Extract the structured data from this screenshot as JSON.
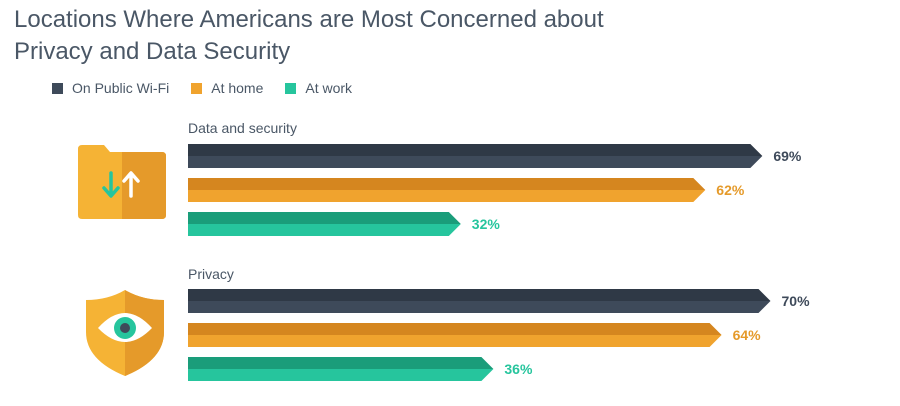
{
  "title": "Locations Where Americans are Most Concerned about Privacy and Data Security",
  "colors": {
    "wifi": "#3e4a5a",
    "home": "#f0a32e",
    "work": "#26c59d",
    "text": "#4a5766"
  },
  "legend": [
    {
      "label": "On Public Wi-Fi",
      "color": "#3e4a5a"
    },
    {
      "label": "At home",
      "color": "#f0a32e"
    },
    {
      "label": "At work",
      "color": "#26c59d"
    }
  ],
  "groups": [
    {
      "label": "Data and security",
      "icon": "folder-transfer-icon"
    },
    {
      "label": "Privacy",
      "icon": "shield-eye-icon"
    }
  ],
  "chart_data": {
    "type": "bar",
    "orientation": "horizontal",
    "categories": [
      "Data and security",
      "Privacy"
    ],
    "series": [
      {
        "name": "On Public Wi-Fi",
        "values": [
          69,
          70
        ],
        "labels": [
          "69%",
          "70%"
        ]
      },
      {
        "name": "At home",
        "values": [
          62,
          64
        ],
        "labels": [
          "62%",
          "64%"
        ]
      },
      {
        "name": "At work",
        "values": [
          32,
          36
        ],
        "labels": [
          "32%",
          "36%"
        ]
      }
    ],
    "title": "Locations Where Americans are Most Concerned about Privacy and Data Security",
    "legend": "top-left",
    "grid": false,
    "xlim": [
      0,
      100
    ]
  }
}
